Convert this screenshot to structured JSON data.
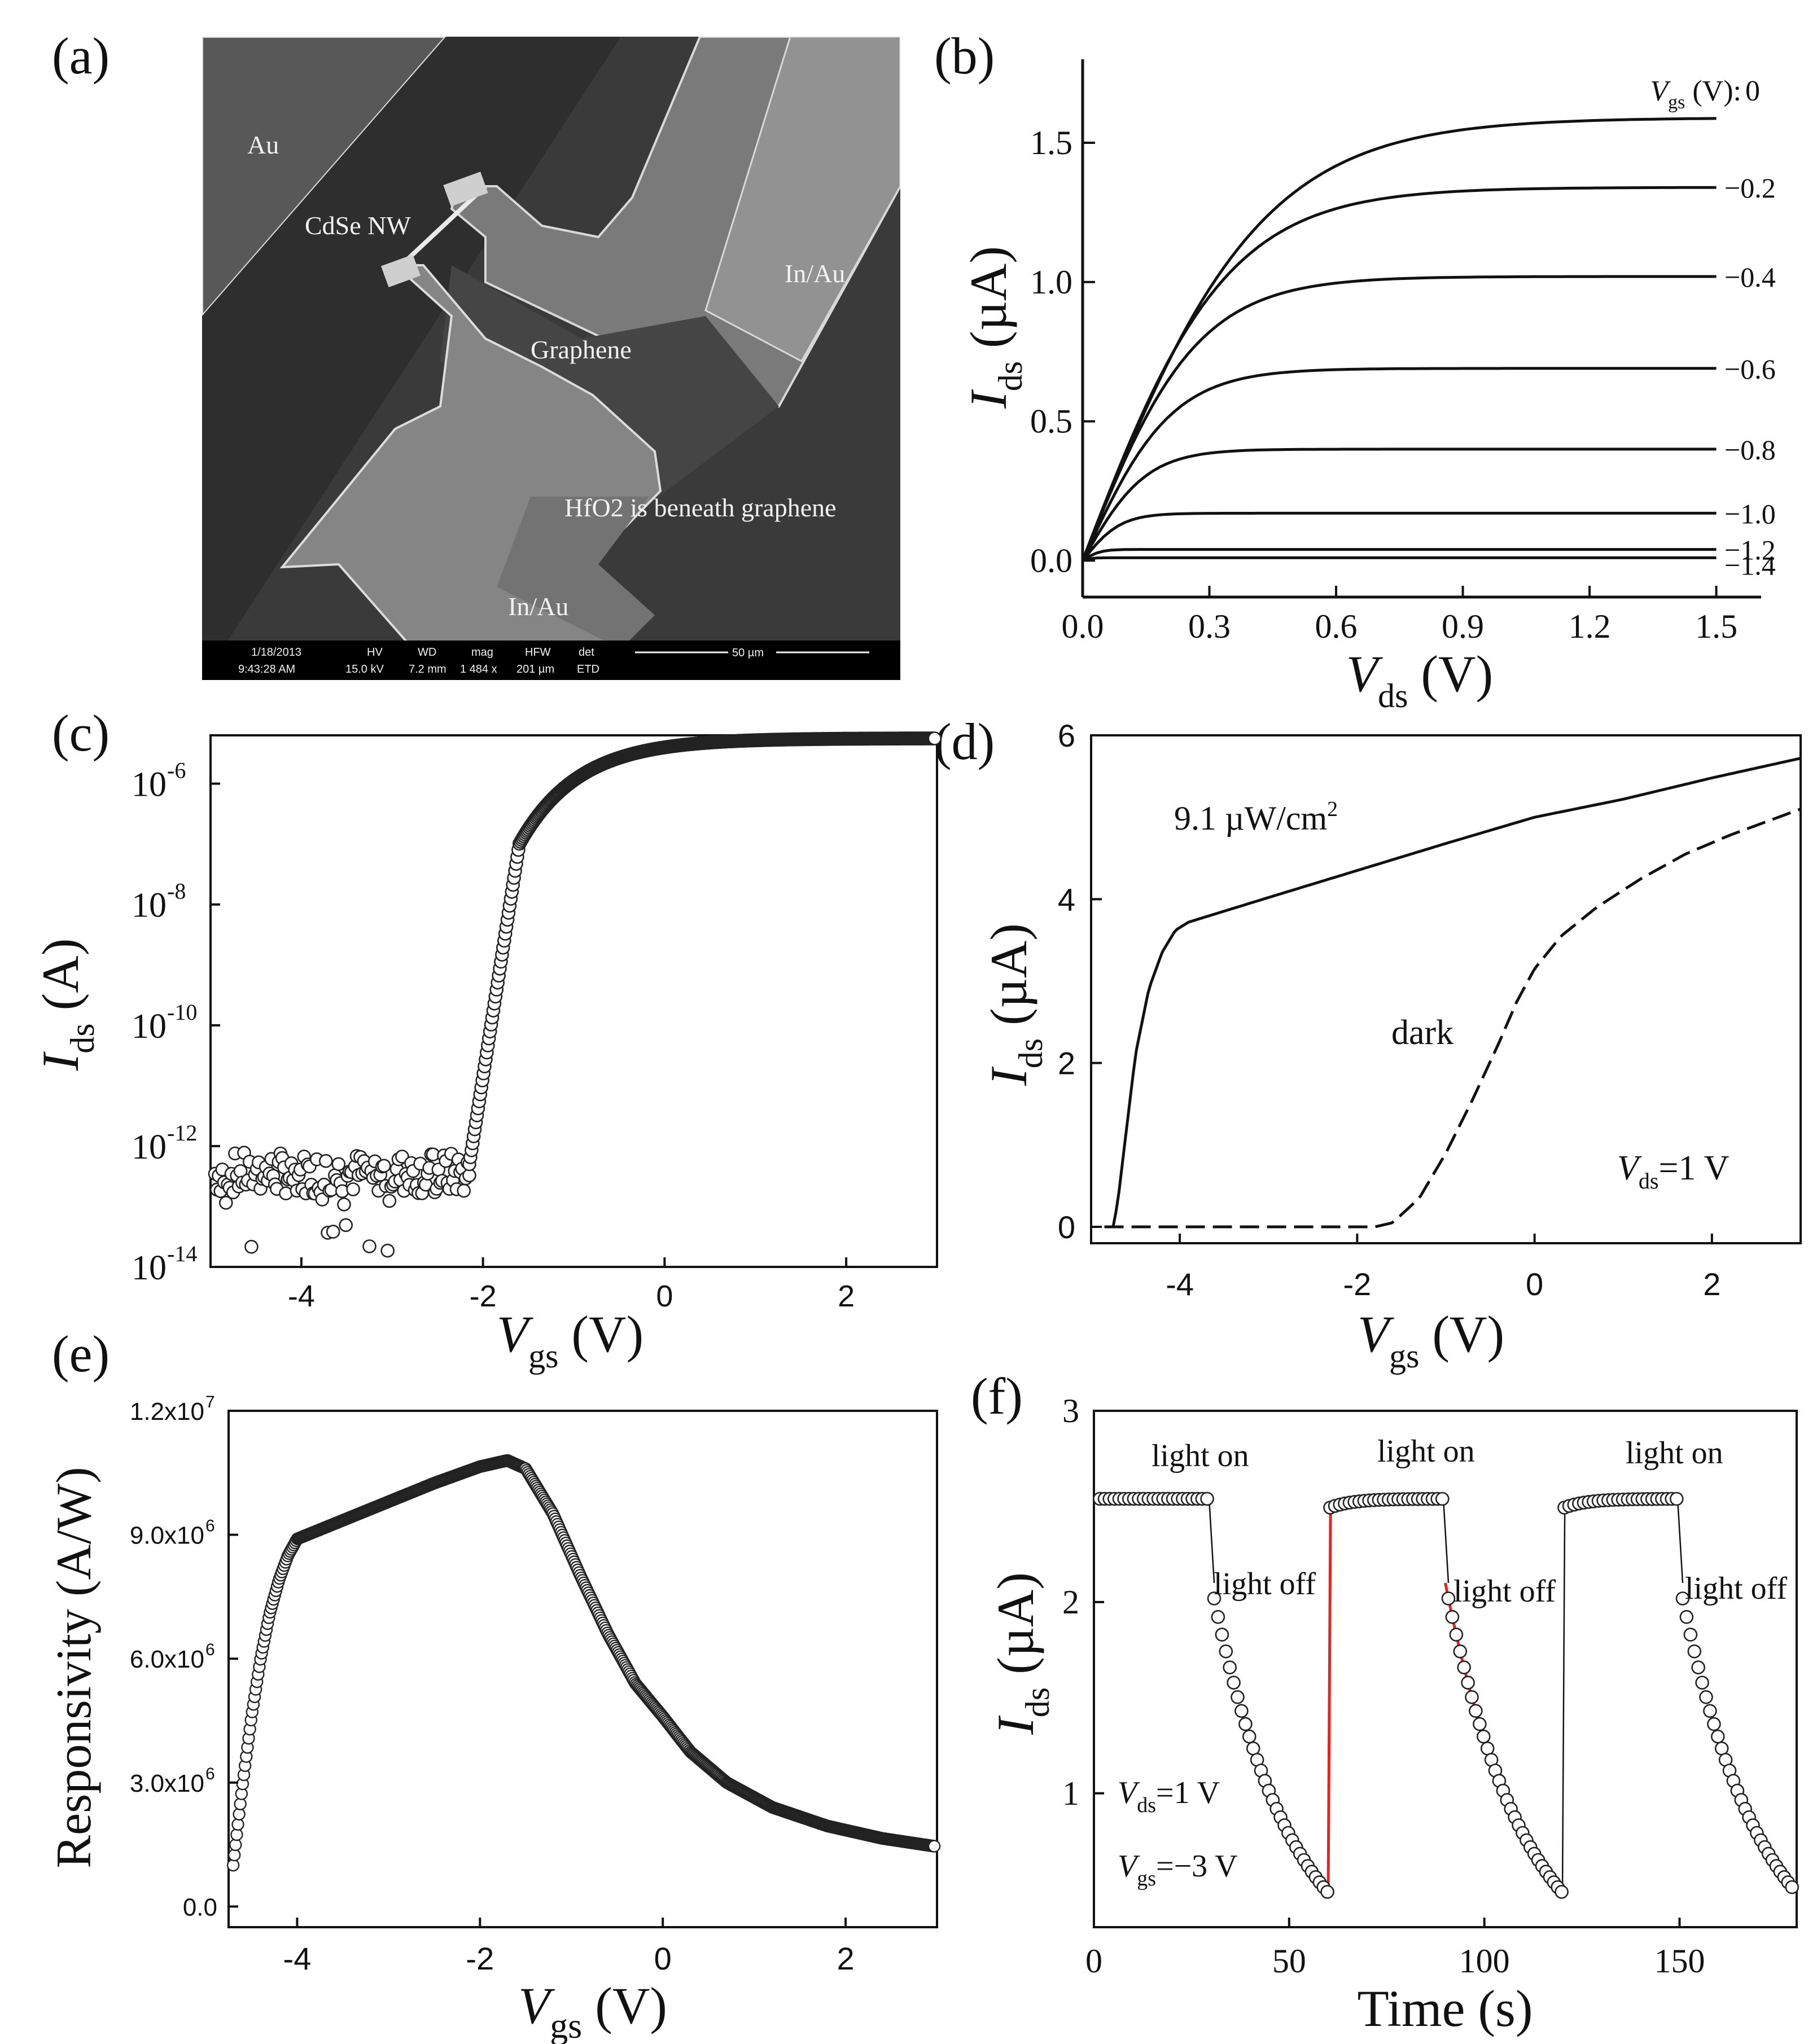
{
  "figure": {
    "panel_labels": [
      "(a)",
      "(b)",
      "(c)",
      "(d)",
      "(e)",
      "(f)"
    ]
  },
  "sem_image": {
    "labels": [
      "Au",
      "CdSe NW",
      "In/Au",
      "Graphene",
      "HfO2 is beneath graphene",
      "In/Au"
    ],
    "info_bar": {
      "date": "1/18/2013",
      "time": "9:43:28 AM",
      "hv_label": "HV",
      "hv": "15.0 kV",
      "wd_label": "WD",
      "wd": "7.2 mm",
      "mag_label": "mag",
      "mag": "1 484 x",
      "hfw_label": "HFW",
      "hfw": "201 µm",
      "det_label": "det",
      "det": "ETD",
      "scale": "50 µm"
    }
  },
  "chart_data": [
    {
      "panel": "(b)",
      "type": "line",
      "xlabel": "V",
      "xlabel_sub": "ds",
      "xlabel_unit": " (V)",
      "ylabel": "I",
      "ylabel_sub": "ds",
      "ylabel_unit": " (µA)",
      "xlim": [
        0,
        1.55
      ],
      "ylim": [
        -0.05,
        1.8
      ],
      "xticks": [
        0.0,
        0.3,
        0.6,
        0.9,
        1.2,
        1.5
      ],
      "xticklabels": [
        "0.0",
        "0.3",
        "0.6",
        "0.9",
        "1.2",
        "1.5"
      ],
      "yticks": [
        0.0,
        0.5,
        1.0,
        1.5
      ],
      "yticklabels": [
        "0.0",
        "0.5",
        "1.0",
        "1.5"
      ],
      "legend_title": "V",
      "legend_title_sub": "gs",
      "legend_title_unit": " (V): ",
      "series": [
        {
          "name": "0",
          "saturation": 1.59,
          "knee": 0.42
        },
        {
          "name": "−0.2",
          "saturation": 1.34,
          "knee": 0.34
        },
        {
          "name": "−0.4",
          "saturation": 1.02,
          "knee": 0.27
        },
        {
          "name": "−0.6",
          "saturation": 0.69,
          "knee": 0.21
        },
        {
          "name": "−0.8",
          "saturation": 0.4,
          "knee": 0.15
        },
        {
          "name": "−1.0",
          "saturation": 0.17,
          "knee": 0.09
        },
        {
          "name": "−1.2",
          "saturation": 0.04,
          "knee": 0.04
        },
        {
          "name": "−1.4",
          "saturation": 0.01,
          "knee": 0.02
        }
      ]
    },
    {
      "panel": "(c)",
      "type": "scatter",
      "yscale": "log",
      "xlabel": "V",
      "xlabel_sub": "gs",
      "xlabel_unit": " (V)",
      "ylabel": "I",
      "ylabel_sub": "ds",
      "ylabel_unit": " (A)",
      "xlim": [
        -5,
        3
      ],
      "ylim_log10": [
        -14,
        -5.2
      ],
      "xticks": [
        -4,
        -2,
        0,
        2
      ],
      "xticklabels": [
        "-4",
        "-2",
        "0",
        "2"
      ],
      "yticks_log10": [
        -14,
        -12,
        -10,
        -8,
        -6
      ],
      "yticklabels": [
        "10",
        "10",
        "10",
        "10",
        "10"
      ],
      "ytick_exponents": [
        "-14",
        "-12",
        "-10",
        "-8",
        "-6"
      ],
      "threshold_voltage": -2.15,
      "off_current_log10": -12.4,
      "on_current_log10": -5.25
    },
    {
      "panel": "(d)",
      "type": "line",
      "xlabel": "V",
      "xlabel_sub": "gs",
      "xlabel_unit": " (V)",
      "ylabel": "I",
      "ylabel_sub": "ds",
      "ylabel_unit": " (µA)",
      "xlim": [
        -5,
        3
      ],
      "ylim": [
        -0.2,
        6
      ],
      "xticks": [
        -4,
        -2,
        0,
        2
      ],
      "xticklabels": [
        "-4",
        "-2",
        "0",
        "2"
      ],
      "yticks": [
        0,
        2,
        4,
        6
      ],
      "yticklabels": [
        "0",
        "2",
        "4",
        "6"
      ],
      "annotations": {
        "light": "9.1 µW/cm",
        "light_sup": "2",
        "dark": "dark",
        "bias": "V",
        "bias_sub": "ds",
        "bias_rest": "=1 V"
      },
      "series": [
        {
          "name": "9.1 µW/cm2",
          "style": "solid",
          "x": [
            -4.85,
            -4.75,
            -4.7,
            -4.6,
            -4.5,
            -4.35,
            -4.2,
            -4.05,
            -3.9,
            -3.0,
            -2.0,
            -1.0,
            0.0,
            1.0,
            2.0,
            3.0
          ],
          "y": [
            0.0,
            0.0,
            0.3,
            1.2,
            2.1,
            2.9,
            3.35,
            3.62,
            3.72,
            4.02,
            4.35,
            4.68,
            5.0,
            5.22,
            5.48,
            5.72
          ]
        },
        {
          "name": "dark",
          "style": "dashed",
          "x": [
            -4.85,
            -3.0,
            -1.8,
            -1.6,
            -1.3,
            -1.0,
            -0.7,
            -0.4,
            -0.2,
            0.0,
            0.3,
            0.7,
            1.2,
            1.7,
            2.2,
            3.0
          ],
          "y": [
            0.0,
            0.0,
            0.0,
            0.05,
            0.35,
            0.9,
            1.55,
            2.25,
            2.75,
            3.15,
            3.55,
            3.9,
            4.25,
            4.55,
            4.78,
            5.1
          ]
        }
      ]
    },
    {
      "panel": "(e)",
      "type": "scatter",
      "xlabel": "V",
      "xlabel_sub": "gs",
      "xlabel_unit": " (V)",
      "ylabel": "Responsivity (A/W)",
      "xlim": [
        -4.75,
        3
      ],
      "ylim": [
        -500000.0,
        12000000.0
      ],
      "xticks": [
        -4,
        -2,
        0,
        2
      ],
      "xticklabels": [
        "-4",
        "-2",
        "0",
        "2"
      ],
      "yticks": [
        0,
        3000000.0,
        6000000.0,
        9000000.0,
        12000000.0
      ],
      "yticklabels": [
        "0.0",
        "3.0x10",
        "6.0x10",
        "9.0x10",
        "1.2x10"
      ],
      "ytick_exponents": [
        "",
        "6",
        "6",
        "6",
        "7"
      ],
      "curve_x": [
        -4.7,
        -4.6,
        -4.5,
        -4.4,
        -4.3,
        -4.2,
        -4.1,
        -4.0,
        -3.5,
        -3.0,
        -2.5,
        -2.0,
        -1.7,
        -1.5,
        -1.2,
        -0.9,
        -0.6,
        -0.3,
        0.0,
        0.3,
        0.7,
        1.2,
        1.8,
        2.4,
        3.0
      ],
      "curve_y": [
        1000000.0,
        2900000.0,
        4600000.0,
        6000000.0,
        7100000.0,
        7900000.0,
        8500000.0,
        8900000.0,
        9350000.0,
        9800000.0,
        10250000.0,
        10650000.0,
        10800000.0,
        10600000.0,
        9500000.0,
        8000000.0,
        6600000.0,
        5400000.0,
        4600000.0,
        3750000.0,
        3000000.0,
        2400000.0,
        1950000.0,
        1650000.0,
        1450000.0
      ]
    },
    {
      "panel": "(f)",
      "type": "scatter",
      "xlabel": "Time (s)",
      "ylabel": "I",
      "ylabel_sub": "ds",
      "ylabel_unit": " (µA)",
      "xlim": [
        0,
        180
      ],
      "ylim": [
        0.3,
        3.0
      ],
      "xticks": [
        0,
        50,
        100,
        150
      ],
      "xticklabels": [
        "0",
        "50",
        "100",
        "150"
      ],
      "yticks": [
        1,
        2,
        3
      ],
      "yticklabels": [
        "1",
        "2",
        "3"
      ],
      "on_level": 2.54,
      "off_start": 2.1,
      "off_end": 0.48,
      "period": 60,
      "annotations": {
        "light_on": "light on",
        "light_off": "light off",
        "vds": "V",
        "vds_sub": "ds",
        "vds_rest": "=1 V",
        "vgs": "V",
        "vgs_sub": "gs",
        "vgs_rest": "=−3 V"
      },
      "fit_color": "#e8231e"
    }
  ]
}
